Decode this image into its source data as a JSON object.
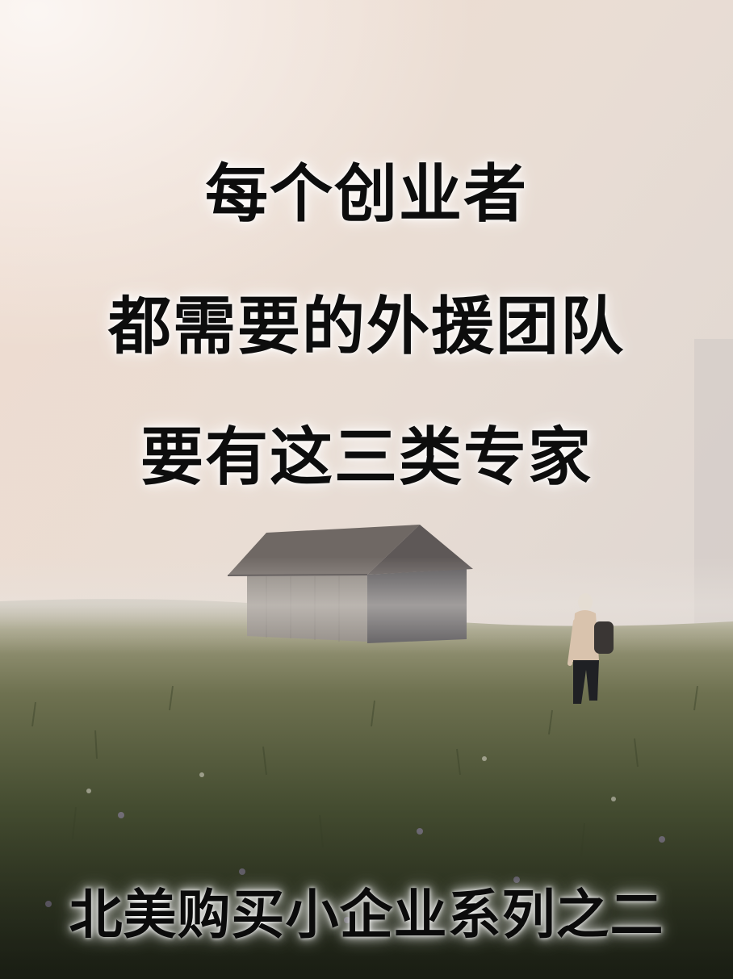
{
  "poster": {
    "headline": [
      "每个创业者",
      "都需要的外援团队",
      "要有这三类专家"
    ],
    "footer": "北美购买小企业系列之二"
  },
  "scene": {
    "description_icons": [
      "cabin-icon",
      "hiker-icon"
    ],
    "colors": {
      "sky_top": "#e9d8cc",
      "sky_mid": "#e7ddd5",
      "fog": "#e6e1dc",
      "meadow_far": "#8c8b6a",
      "meadow_mid": "#4e5536",
      "meadow_near": "#2c3320",
      "cabin_roof": "#6f6864",
      "cabin_wall": "#8d8680",
      "cabin_dark": "#4f4d50"
    }
  }
}
